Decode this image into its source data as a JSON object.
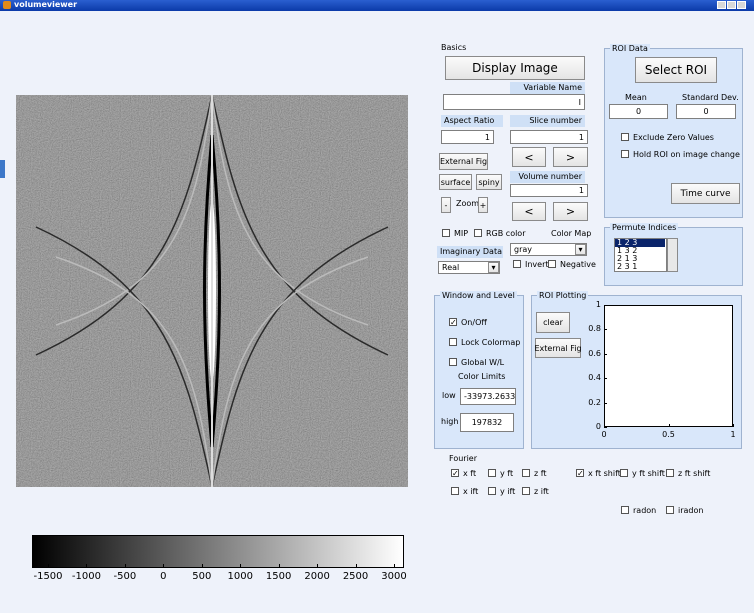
{
  "window": {
    "title": "volumeviewer"
  },
  "basics": {
    "label": "Basics",
    "display_button": "Display Image",
    "variable_name_label": "Variable Name",
    "variable_name_value": "I",
    "aspect_ratio_label": "Aspect Ratio",
    "aspect_ratio_value": "1",
    "slice_label": "Slice number",
    "slice_value": "1",
    "external_fig": "External Fig",
    "slice_prev": "<",
    "slice_next": ">",
    "surface": "surface",
    "spiny": "spiny",
    "volume_label": "Volume number",
    "volume_value": "1",
    "zoom_minus": "-",
    "zoom_label": "Zoom",
    "zoom_plus": "+",
    "volume_prev": "<",
    "volume_next": ">",
    "mip": {
      "label": "MIP",
      "checked": false
    },
    "rgb": {
      "label": "RGB color",
      "checked": false
    },
    "colormap_label": "Color Map",
    "colormap_value": "gray",
    "imaginary_label": "Imaginary Data",
    "imaginary_value": "Real",
    "invert": {
      "label": "Invert",
      "checked": false
    },
    "negative": {
      "label": "Negative",
      "checked": false
    }
  },
  "roi_data": {
    "title": "ROI Data",
    "select_button": "Select ROI",
    "mean_label": "Mean",
    "std_label": "Standard Dev.",
    "mean_value": "0",
    "std_value": "0",
    "exclude_zero": {
      "label": "Exclude Zero Values",
      "checked": false
    },
    "hold_roi": {
      "label": "Hold ROI on image change",
      "checked": false
    },
    "time_curve": "Time curve"
  },
  "permute": {
    "title": "Permute Indices",
    "items": [
      "1 2 3",
      "1 3 2",
      "2 1 3",
      "2 3 1"
    ],
    "selected": 0
  },
  "window_level": {
    "title": "Window and Level",
    "on_off": {
      "label": "On/Off",
      "checked": true
    },
    "lock_colormap": {
      "label": "Lock Colormap",
      "checked": false
    },
    "global_wl": {
      "label": "Global W/L",
      "checked": false
    },
    "color_limits_label": "Color Limits",
    "low_label": "low",
    "low_value": "-33973.2633",
    "high_label": "high",
    "high_value": "197832"
  },
  "roi_plotting": {
    "title": "ROI Plotting",
    "clear": "clear",
    "external_fig": "External Fig",
    "yticks": [
      "0",
      "0.2",
      "0.4",
      "0.6",
      "0.8",
      "1"
    ],
    "xticks": [
      "0",
      "0.5",
      "1"
    ]
  },
  "fourier": {
    "label": "Fourier",
    "row1": [
      {
        "label": "x ft",
        "checked": true
      },
      {
        "label": "y ft",
        "checked": false
      },
      {
        "label": "z ft",
        "checked": false
      },
      {
        "label": "x ft shift",
        "checked": true
      },
      {
        "label": "y ft shift",
        "checked": false
      },
      {
        "label": "z ft shift",
        "checked": false
      }
    ],
    "row2": [
      {
        "label": "x ift",
        "checked": false
      },
      {
        "label": "y ift",
        "checked": false
      },
      {
        "label": "z ift",
        "checked": false
      }
    ],
    "radon": {
      "label": "radon",
      "checked": false
    },
    "iradon": {
      "label": "iradon",
      "checked": false
    }
  },
  "colorbar": {
    "ticks": [
      -1500,
      -1000,
      -500,
      0,
      500,
      1000,
      1500,
      2000,
      2500,
      3000
    ]
  }
}
